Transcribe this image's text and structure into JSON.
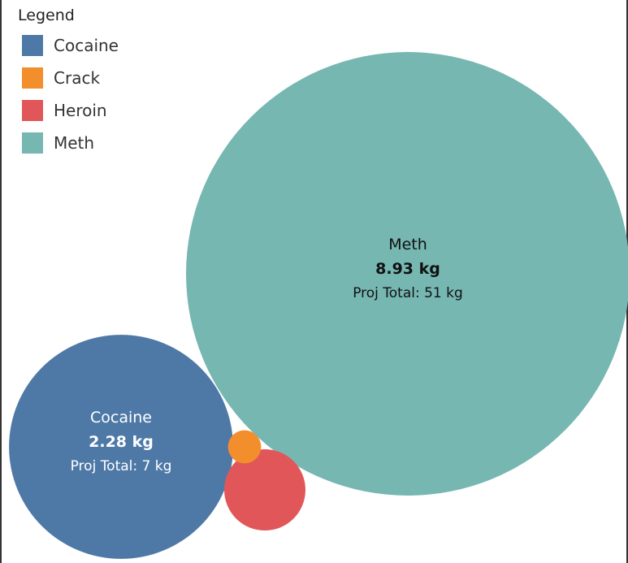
{
  "legend": {
    "title": "Legend",
    "items": [
      {
        "label": "Cocaine",
        "color": "#4e79a7"
      },
      {
        "label": "Crack",
        "color": "#f28e2b"
      },
      {
        "label": "Heroin",
        "color": "#e15759"
      },
      {
        "label": "Meth",
        "color": "#76b7b2"
      }
    ]
  },
  "chart_data": {
    "type": "bubble",
    "title": "",
    "series": [
      {
        "name": "Cocaine",
        "value_kg": 2.28,
        "value_label": "2.28 kg",
        "projected_total_label": "Proj Total: 7 kg",
        "color": "#4e79a7",
        "label_color": "#ffffff"
      },
      {
        "name": "Crack",
        "value_kg": 0.05,
        "value_label": "",
        "projected_total_label": "",
        "color": "#f28e2b",
        "label_color": "#ffffff"
      },
      {
        "name": "Heroin",
        "value_kg": 0.3,
        "value_label": "",
        "projected_total_label": "",
        "color": "#e15759",
        "label_color": "#ffffff"
      },
      {
        "name": "Meth",
        "value_kg": 8.93,
        "value_label": "8.93 kg",
        "projected_total_label": "Proj Total: 51 kg",
        "color": "#76b7b2",
        "label_color": "#111111"
      }
    ]
  }
}
